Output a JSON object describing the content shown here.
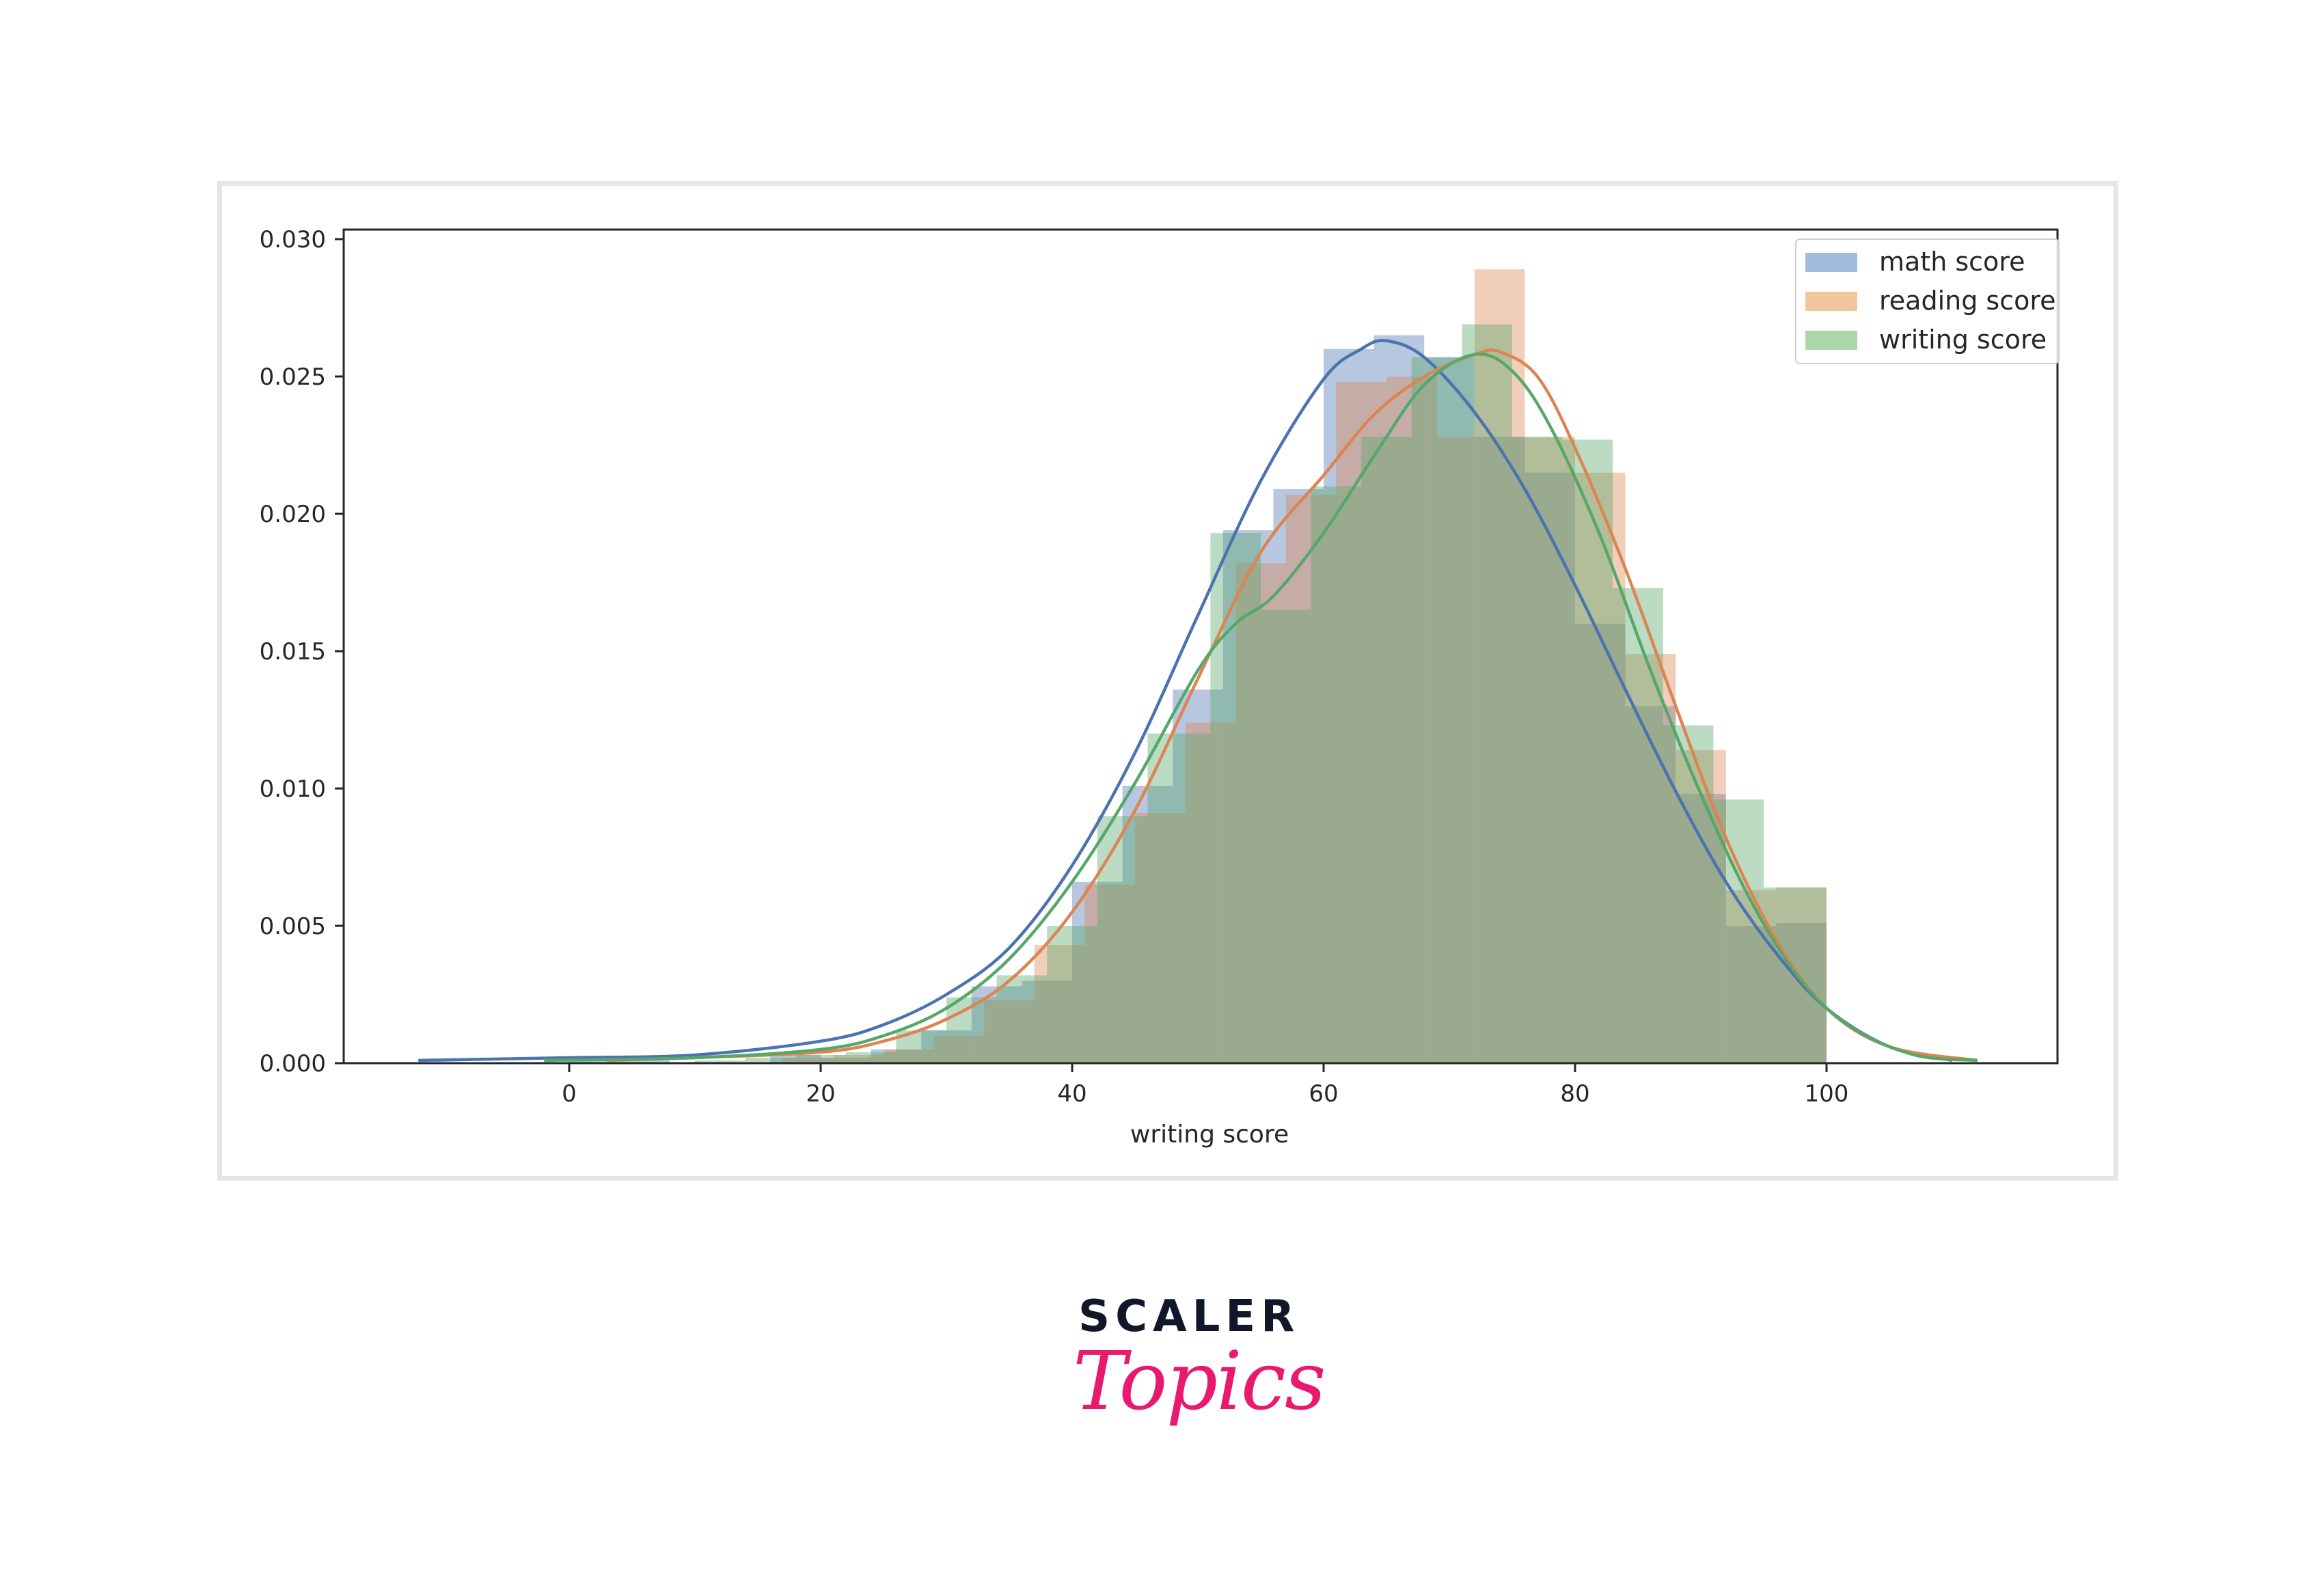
{
  "chart_data": {
    "type": "histogram_kde",
    "title": "",
    "xlabel": "writing score",
    "ylabel": "",
    "xlim": [
      -18,
      118
    ],
    "ylim": [
      0.0,
      0.0303
    ],
    "xticks": [
      0,
      20,
      40,
      60,
      80,
      100
    ],
    "xtick_labels": [
      "0",
      "20",
      "40",
      "60",
      "80",
      "100"
    ],
    "yticks": [
      0.0,
      0.005,
      0.01,
      0.015,
      0.02,
      0.025,
      0.03
    ],
    "ytick_labels": [
      "0.000",
      "0.005",
      "0.010",
      "0.015",
      "0.020",
      "0.025",
      "0.030"
    ],
    "grid": false,
    "legend_position": "upper right",
    "series": [
      {
        "name": "math score",
        "color": "#4c72b0",
        "bar_color": "#4c72b0",
        "bins": [
          {
            "x0": 0,
            "x1": 4,
            "h": 0.0001
          },
          {
            "x0": 4,
            "x1": 8,
            "h": 0.0001
          },
          {
            "x0": 16,
            "x1": 20,
            "h": 0.0003
          },
          {
            "x0": 20,
            "x1": 24,
            "h": 0.0002
          },
          {
            "x0": 24,
            "x1": 28,
            "h": 0.0005
          },
          {
            "x0": 28,
            "x1": 32,
            "h": 0.0012
          },
          {
            "x0": 32,
            "x1": 36,
            "h": 0.0028
          },
          {
            "x0": 36,
            "x1": 40,
            "h": 0.003
          },
          {
            "x0": 40,
            "x1": 44,
            "h": 0.0066
          },
          {
            "x0": 44,
            "x1": 48,
            "h": 0.0101
          },
          {
            "x0": 48,
            "x1": 52,
            "h": 0.0136
          },
          {
            "x0": 52,
            "x1": 56,
            "h": 0.0194
          },
          {
            "x0": 56,
            "x1": 60,
            "h": 0.0209
          },
          {
            "x0": 60,
            "x1": 64,
            "h": 0.026
          },
          {
            "x0": 64,
            "x1": 68,
            "h": 0.0265
          },
          {
            "x0": 68,
            "x1": 72,
            "h": 0.0257
          },
          {
            "x0": 72,
            "x1": 76,
            "h": 0.0228
          },
          {
            "x0": 76,
            "x1": 80,
            "h": 0.0215
          },
          {
            "x0": 80,
            "x1": 84,
            "h": 0.016
          },
          {
            "x0": 84,
            "x1": 88,
            "h": 0.013
          },
          {
            "x0": 88,
            "x1": 92,
            "h": 0.0098
          },
          {
            "x0": 92,
            "x1": 96,
            "h": 0.005
          },
          {
            "x0": 96,
            "x1": 100,
            "h": 0.0051
          }
        ],
        "kde": [
          [
            -12,
            0.0001
          ],
          [
            0,
            0.0002
          ],
          [
            10,
            0.0003
          ],
          [
            20,
            0.0008
          ],
          [
            25,
            0.0014
          ],
          [
            30,
            0.0025
          ],
          [
            35,
            0.0042
          ],
          [
            40,
            0.0072
          ],
          [
            45,
            0.0113
          ],
          [
            50,
            0.0163
          ],
          [
            55,
            0.0212
          ],
          [
            60,
            0.0249
          ],
          [
            63,
            0.026
          ],
          [
            65,
            0.0263
          ],
          [
            68,
            0.0257
          ],
          [
            72,
            0.0237
          ],
          [
            76,
            0.0209
          ],
          [
            80,
            0.0174
          ],
          [
            84,
            0.0136
          ],
          [
            88,
            0.0099
          ],
          [
            92,
            0.0066
          ],
          [
            96,
            0.004
          ],
          [
            100,
            0.002
          ],
          [
            105,
            0.0006
          ],
          [
            110,
            0.0001
          ]
        ]
      },
      {
        "name": "reading score",
        "color": "#dd8452",
        "bar_color": "#dd8452",
        "bins": [
          {
            "x0": 17,
            "x1": 21,
            "h": 0.0002
          },
          {
            "x0": 21,
            "x1": 25,
            "h": 0.0003
          },
          {
            "x0": 25,
            "x1": 29,
            "h": 0.0005
          },
          {
            "x0": 29,
            "x1": 33,
            "h": 0.001
          },
          {
            "x0": 33,
            "x1": 37,
            "h": 0.0023
          },
          {
            "x0": 37,
            "x1": 41,
            "h": 0.0043
          },
          {
            "x0": 41,
            "x1": 45,
            "h": 0.0065
          },
          {
            "x0": 45,
            "x1": 49,
            "h": 0.0091
          },
          {
            "x0": 49,
            "x1": 53,
            "h": 0.0124
          },
          {
            "x0": 53,
            "x1": 57,
            "h": 0.0182
          },
          {
            "x0": 57,
            "x1": 61,
            "h": 0.0207
          },
          {
            "x0": 61,
            "x1": 65,
            "h": 0.0248
          },
          {
            "x0": 65,
            "x1": 69,
            "h": 0.025
          },
          {
            "x0": 69,
            "x1": 72,
            "h": 0.0228
          },
          {
            "x0": 72,
            "x1": 76,
            "h": 0.0289
          },
          {
            "x0": 76,
            "x1": 80,
            "h": 0.0228
          },
          {
            "x0": 80,
            "x1": 84,
            "h": 0.0215
          },
          {
            "x0": 84,
            "x1": 88,
            "h": 0.0149
          },
          {
            "x0": 88,
            "x1": 92,
            "h": 0.0114
          },
          {
            "x0": 92,
            "x1": 96,
            "h": 0.0063
          },
          {
            "x0": 96,
            "x1": 100,
            "h": 0.0064
          }
        ],
        "kde": [
          [
            3,
            0.0001
          ],
          [
            10,
            0.0002
          ],
          [
            20,
            0.0004
          ],
          [
            25,
            0.0008
          ],
          [
            30,
            0.0016
          ],
          [
            35,
            0.003
          ],
          [
            40,
            0.0055
          ],
          [
            45,
            0.0092
          ],
          [
            50,
            0.014
          ],
          [
            55,
            0.0186
          ],
          [
            60,
            0.0214
          ],
          [
            64,
            0.0236
          ],
          [
            68,
            0.025
          ],
          [
            72,
            0.0258
          ],
          [
            74,
            0.0259
          ],
          [
            77,
            0.025
          ],
          [
            80,
            0.0224
          ],
          [
            84,
            0.018
          ],
          [
            88,
            0.013
          ],
          [
            92,
            0.0082
          ],
          [
            96,
            0.0045
          ],
          [
            100,
            0.002
          ],
          [
            105,
            0.0006
          ],
          [
            112,
            0.0001
          ]
        ]
      },
      {
        "name": "writing score",
        "color": "#55a868",
        "bar_color": "#55a868",
        "bins": [
          {
            "x0": 10,
            "x1": 14,
            "h": 0.0001
          },
          {
            "x0": 14,
            "x1": 18,
            "h": 0.0002
          },
          {
            "x0": 18,
            "x1": 22,
            "h": 0.0003
          },
          {
            "x0": 22,
            "x1": 26,
            "h": 0.0004
          },
          {
            "x0": 26,
            "x1": 30,
            "h": 0.0012
          },
          {
            "x0": 30,
            "x1": 34,
            "h": 0.0024
          },
          {
            "x0": 34,
            "x1": 38,
            "h": 0.0032
          },
          {
            "x0": 38,
            "x1": 42,
            "h": 0.005
          },
          {
            "x0": 42,
            "x1": 46,
            "h": 0.009
          },
          {
            "x0": 46,
            "x1": 51,
            "h": 0.012
          },
          {
            "x0": 51,
            "x1": 55,
            "h": 0.0193
          },
          {
            "x0": 55,
            "x1": 59,
            "h": 0.0165
          },
          {
            "x0": 59,
            "x1": 63,
            "h": 0.021
          },
          {
            "x0": 63,
            "x1": 67,
            "h": 0.0228
          },
          {
            "x0": 67,
            "x1": 71,
            "h": 0.0257
          },
          {
            "x0": 71,
            "x1": 75,
            "h": 0.0269
          },
          {
            "x0": 75,
            "x1": 79,
            "h": 0.0228
          },
          {
            "x0": 79,
            "x1": 83,
            "h": 0.0227
          },
          {
            "x0": 83,
            "x1": 87,
            "h": 0.0173
          },
          {
            "x0": 87,
            "x1": 91,
            "h": 0.0123
          },
          {
            "x0": 91,
            "x1": 95,
            "h": 0.0096
          },
          {
            "x0": 95,
            "x1": 100,
            "h": 0.0064
          }
        ],
        "kde": [
          [
            -2,
            0.0001
          ],
          [
            10,
            0.0002
          ],
          [
            20,
            0.0005
          ],
          [
            25,
            0.001
          ],
          [
            30,
            0.002
          ],
          [
            35,
            0.0038
          ],
          [
            40,
            0.0066
          ],
          [
            45,
            0.0102
          ],
          [
            50,
            0.0143
          ],
          [
            53,
            0.016
          ],
          [
            56,
            0.017
          ],
          [
            60,
            0.0193
          ],
          [
            64,
            0.0221
          ],
          [
            68,
            0.0247
          ],
          [
            72,
            0.0258
          ],
          [
            75,
            0.0252
          ],
          [
            78,
            0.0232
          ],
          [
            82,
            0.0192
          ],
          [
            86,
            0.0143
          ],
          [
            90,
            0.0098
          ],
          [
            94,
            0.0059
          ],
          [
            98,
            0.003
          ],
          [
            102,
            0.0013
          ],
          [
            107,
            0.0003
          ],
          [
            112,
            0.0001
          ]
        ]
      }
    ]
  },
  "legend": {
    "items": [
      {
        "label": "math score",
        "color": "#a2bbdc"
      },
      {
        "label": "reading score",
        "color": "#f2c59c"
      },
      {
        "label": "writing score",
        "color": "#add6a8"
      }
    ]
  },
  "branding": {
    "line1": "SCALER",
    "line2": "Topics",
    "line1_color": "#0f1729",
    "line2_color": "#e8196e"
  }
}
